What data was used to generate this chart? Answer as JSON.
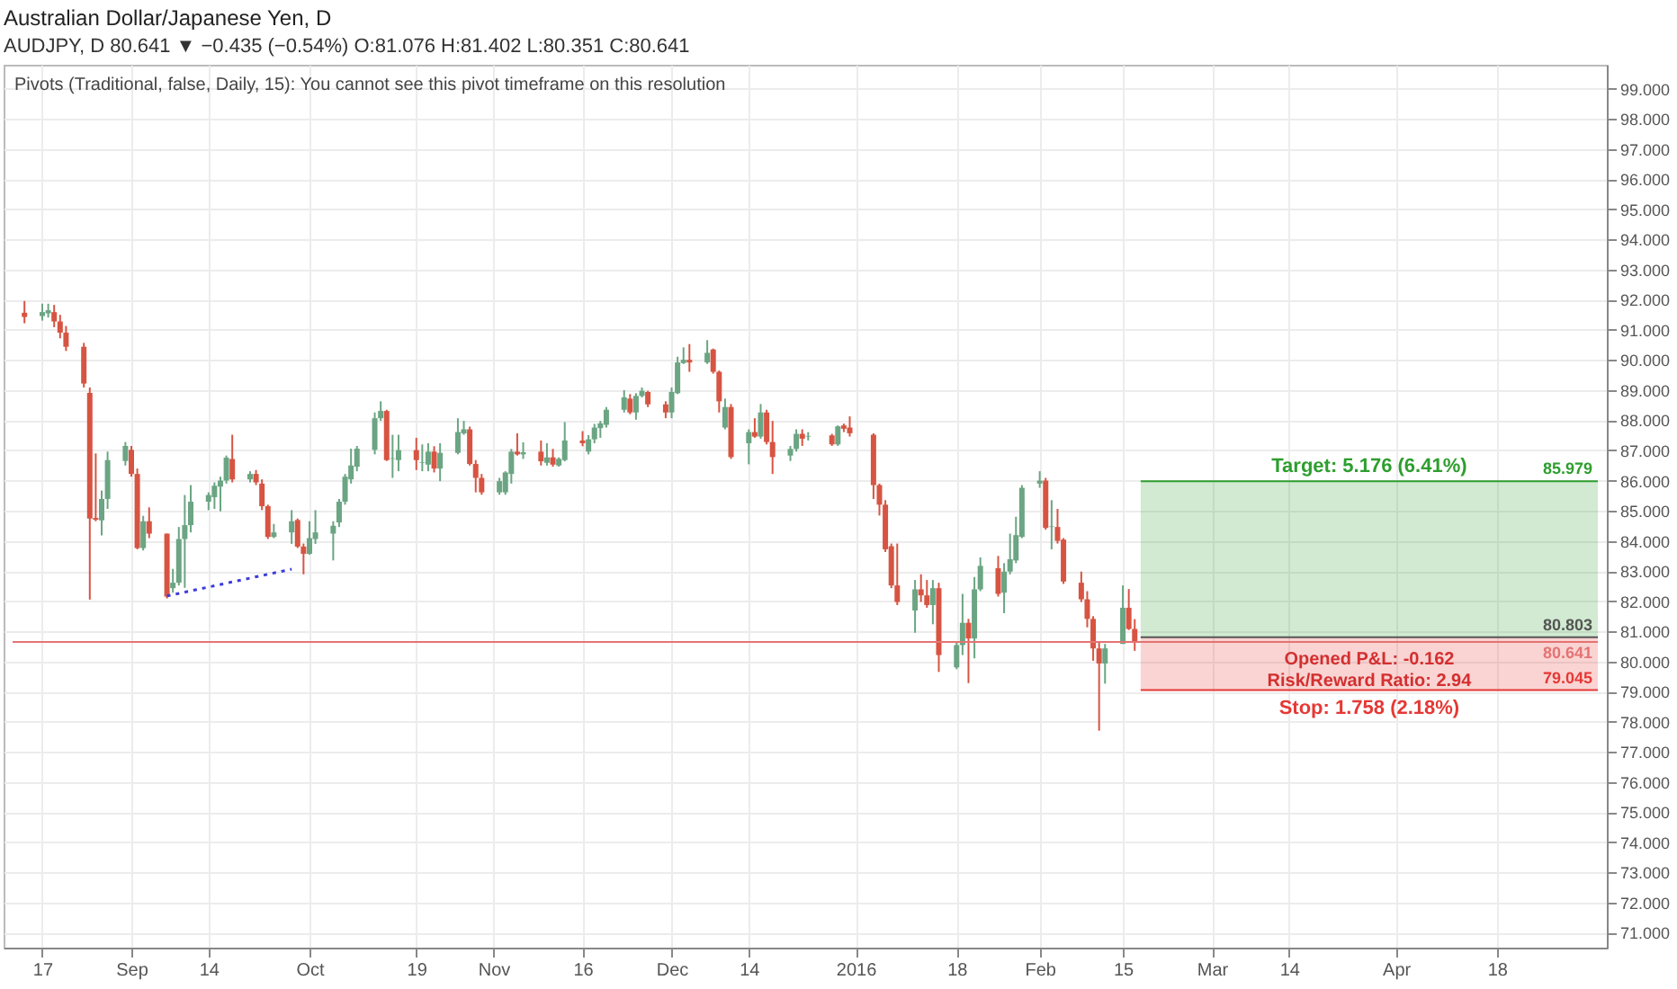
{
  "chart_data": {
    "type": "candlestick",
    "title": "Australian Dollar/Japanese Yen, D",
    "subtitle": "AUDJPY, D 80.641 ▼ −0.435 (−0.54%) O:81.076 H:81.402 L:80.351 C:80.641",
    "annotations": [
      "Pivots (Traditional, false, Daily, 15): You cannot see this pivot timeframe on this resolution",
      "Opened P&L: -0.162",
      "Risk/Reward Ratio: 2.94"
    ],
    "x": [
      "2015-08-14",
      "2015-08-17",
      "2015-08-18",
      "2015-08-19",
      "2015-08-20",
      "2015-08-21",
      "2015-08-24",
      "2015-08-25",
      "2015-08-26",
      "2015-08-27",
      "2015-08-28",
      "2015-08-31",
      "2015-09-01",
      "2015-09-02",
      "2015-09-03",
      "2015-09-04",
      "2015-09-07",
      "2015-09-08",
      "2015-09-09",
      "2015-09-10",
      "2015-09-11",
      "2015-09-14",
      "2015-09-15",
      "2015-09-16",
      "2015-09-17",
      "2015-09-18",
      "2015-09-21",
      "2015-09-22",
      "2015-09-23",
      "2015-09-24",
      "2015-09-25",
      "2015-09-28",
      "2015-09-29",
      "2015-09-30",
      "2015-10-01",
      "2015-10-02",
      "2015-10-05",
      "2015-10-06",
      "2015-10-07",
      "2015-10-08",
      "2015-10-09",
      "2015-10-12",
      "2015-10-13",
      "2015-10-14",
      "2015-10-15",
      "2015-10-16",
      "2015-10-19",
      "2015-10-20",
      "2015-10-21",
      "2015-10-22",
      "2015-10-23",
      "2015-10-26",
      "2015-10-27",
      "2015-10-28",
      "2015-10-29",
      "2015-10-30",
      "2015-11-02",
      "2015-11-03",
      "2015-11-04",
      "2015-11-05",
      "2015-11-06",
      "2015-11-09",
      "2015-11-10",
      "2015-11-11",
      "2015-11-12",
      "2015-11-13",
      "2015-11-16",
      "2015-11-17",
      "2015-11-18",
      "2015-11-19",
      "2015-11-20",
      "2015-11-23",
      "2015-11-24",
      "2015-11-25",
      "2015-11-26",
      "2015-11-27",
      "2015-11-30",
      "2015-12-01",
      "2015-12-02",
      "2015-12-03",
      "2015-12-04",
      "2015-12-07",
      "2015-12-08",
      "2015-12-09",
      "2015-12-10",
      "2015-12-11",
      "2015-12-14",
      "2015-12-15",
      "2015-12-16",
      "2015-12-17",
      "2015-12-18",
      "2015-12-21",
      "2015-12-22",
      "2015-12-23",
      "2015-12-24",
      "2015-12-28",
      "2015-12-29",
      "2015-12-30",
      "2015-12-31",
      "2016-01-04",
      "2016-01-05",
      "2016-01-06",
      "2016-01-07",
      "2016-01-08",
      "2016-01-11",
      "2016-01-12",
      "2016-01-13",
      "2016-01-14",
      "2016-01-15",
      "2016-01-18",
      "2016-01-19",
      "2016-01-20",
      "2016-01-21",
      "2016-01-22",
      "2016-01-25",
      "2016-01-26",
      "2016-01-27",
      "2016-01-28",
      "2016-01-29",
      "2016-02-01",
      "2016-02-02",
      "2016-02-03",
      "2016-02-04",
      "2016-02-05",
      "2016-02-08",
      "2016-02-09",
      "2016-02-10",
      "2016-02-11",
      "2016-02-12",
      "2016-02-15",
      "2016-02-16",
      "2016-02-17"
    ],
    "ohlc": [
      [
        91.57,
        91.96,
        91.22,
        91.43
      ],
      [
        91.46,
        91.87,
        91.31,
        91.59
      ],
      [
        91.55,
        91.87,
        91.41,
        91.65
      ],
      [
        91.59,
        91.83,
        91.09,
        91.28
      ],
      [
        91.28,
        91.5,
        90.72,
        90.91
      ],
      [
        90.91,
        91.13,
        90.3,
        90.44
      ],
      [
        90.44,
        90.57,
        89.09,
        89.22
      ],
      [
        88.91,
        89.09,
        82.05,
        84.74
      ],
      [
        84.76,
        86.9,
        84.65,
        84.7
      ],
      [
        84.68,
        85.67,
        84.18,
        85.39
      ],
      [
        85.39,
        86.96,
        85.06,
        86.68
      ],
      [
        86.65,
        87.28,
        86.5,
        87.15
      ],
      [
        87.02,
        87.15,
        86.13,
        86.22
      ],
      [
        86.22,
        86.4,
        83.72,
        83.76
      ],
      [
        83.76,
        84.83,
        83.68,
        84.65
      ],
      [
        84.65,
        85.11,
        84.09,
        84.24
      ],
      [
        84.24,
        84.24,
        82.09,
        82.15
      ],
      [
        82.43,
        83.07,
        82.28,
        82.61
      ],
      [
        82.61,
        84.46,
        82.52,
        84.06
      ],
      [
        84.06,
        85.52,
        82.44,
        84.52
      ],
      [
        84.52,
        85.85,
        84.28,
        85.3
      ],
      [
        85.3,
        85.61,
        85.02,
        85.52
      ],
      [
        85.45,
        85.94,
        85.06,
        85.83
      ],
      [
        85.8,
        86.13,
        84.98,
        86.0
      ],
      [
        86.0,
        86.83,
        85.9,
        86.76
      ],
      [
        86.72,
        87.52,
        85.94,
        86.04
      ],
      [
        86.04,
        86.31,
        85.94,
        86.22
      ],
      [
        86.22,
        86.35,
        85.85,
        85.94
      ],
      [
        85.9,
        86.04,
        85.02,
        85.15
      ],
      [
        85.15,
        85.2,
        84.06,
        84.13
      ],
      [
        84.13,
        84.56,
        84.09,
        84.28
      ],
      [
        84.28,
        85.02,
        83.9,
        84.65
      ],
      [
        84.69,
        84.74,
        83.76,
        83.81
      ],
      [
        83.81,
        83.91,
        82.89,
        83.57
      ],
      [
        83.57,
        84.65,
        83.54,
        84.09
      ],
      [
        84.06,
        85.02,
        83.9,
        84.28
      ],
      [
        84.24,
        84.65,
        83.35,
        84.5
      ],
      [
        84.61,
        85.39,
        84.46,
        85.3
      ],
      [
        85.3,
        86.22,
        85.2,
        86.13
      ],
      [
        86.04,
        87.06,
        85.9,
        86.5
      ],
      [
        86.46,
        87.15,
        86.31,
        87.06
      ],
      [
        87.02,
        88.26,
        86.87,
        88.07
      ],
      [
        88.07,
        88.63,
        87.98,
        88.31
      ],
      [
        88.31,
        88.35,
        86.65,
        86.68
      ],
      [
        86.72,
        87.52,
        86.09,
        86.74
      ],
      [
        86.68,
        87.52,
        86.31,
        87.01
      ],
      [
        87.01,
        87.42,
        86.35,
        86.68
      ],
      [
        86.59,
        87.2,
        86.31,
        86.61
      ],
      [
        86.53,
        87.24,
        86.31,
        86.96
      ],
      [
        86.96,
        87.14,
        86.27,
        86.4
      ],
      [
        86.4,
        87.24,
        85.98,
        86.92
      ],
      [
        86.92,
        88.07,
        86.87,
        87.61
      ],
      [
        87.57,
        87.98,
        87.52,
        87.7
      ],
      [
        87.7,
        87.79,
        86.5,
        86.55
      ],
      [
        86.55,
        86.68,
        85.61,
        86.09
      ],
      [
        86.09,
        86.22,
        85.53,
        85.61
      ],
      [
        85.61,
        86.09,
        85.53,
        85.98
      ],
      [
        85.61,
        86.31,
        85.53,
        86.27
      ],
      [
        86.22,
        87.05,
        85.9,
        86.96
      ],
      [
        86.96,
        87.57,
        86.83,
        86.87
      ],
      [
        86.87,
        87.27,
        86.72,
        86.94
      ],
      [
        86.96,
        87.33,
        86.5,
        86.64
      ],
      [
        86.59,
        87.24,
        86.5,
        86.77
      ],
      [
        86.77,
        87.05,
        86.46,
        86.53
      ],
      [
        86.5,
        86.77,
        86.46,
        86.72
      ],
      [
        86.68,
        87.94,
        86.64,
        87.33
      ],
      [
        87.33,
        87.64,
        87.14,
        87.24
      ],
      [
        86.96,
        87.51,
        86.87,
        87.37
      ],
      [
        87.37,
        87.88,
        87.24,
        87.76
      ],
      [
        87.74,
        87.98,
        87.42,
        87.9
      ],
      [
        87.85,
        88.44,
        87.76,
        88.35
      ],
      [
        88.35,
        89.0,
        88.26,
        88.76
      ],
      [
        88.72,
        88.87,
        88.2,
        88.26
      ],
      [
        88.26,
        88.9,
        88.02,
        88.81
      ],
      [
        88.81,
        89.09,
        88.76,
        88.98
      ],
      [
        88.94,
        88.98,
        88.44,
        88.53
      ],
      [
        88.53,
        88.63,
        88.07,
        88.26
      ],
      [
        88.26,
        89.09,
        88.07,
        88.94
      ],
      [
        88.9,
        90.11,
        88.87,
        89.92
      ],
      [
        89.9,
        90.42,
        89.87,
        90.01
      ],
      [
        90.01,
        90.53,
        89.61,
        89.92
      ],
      [
        89.92,
        90.66,
        89.87,
        90.24
      ],
      [
        90.35,
        90.38,
        89.55,
        89.61
      ],
      [
        89.61,
        89.65,
        88.26,
        88.63
      ],
      [
        87.76,
        88.72,
        87.7,
        88.44
      ],
      [
        88.44,
        88.54,
        86.72,
        86.78
      ],
      [
        87.24,
        87.7,
        86.54,
        87.61
      ],
      [
        87.61,
        88.07,
        87.42,
        87.46
      ],
      [
        87.46,
        88.54,
        87.39,
        88.26
      ],
      [
        88.26,
        88.35,
        87.2,
        87.28
      ],
      [
        87.28,
        87.98,
        86.22,
        86.78
      ],
      [
        86.83,
        87.15,
        86.65,
        87.05
      ],
      [
        87.05,
        87.7,
        86.96,
        87.55
      ],
      [
        87.55,
        87.7,
        87.15,
        87.39
      ],
      [
        87.46,
        87.61,
        87.33,
        87.48
      ],
      [
        87.5,
        87.55,
        87.15,
        87.2
      ],
      [
        87.2,
        87.83,
        87.15,
        87.8
      ],
      [
        87.83,
        87.89,
        87.61,
        87.72
      ],
      [
        87.76,
        88.13,
        87.46,
        87.57
      ],
      [
        87.52,
        87.57,
        85.39,
        85.85
      ],
      [
        85.85,
        85.9,
        84.84,
        85.2
      ],
      [
        85.2,
        85.35,
        83.63,
        83.72
      ],
      [
        83.82,
        83.91,
        82.43,
        82.52
      ],
      [
        82.52,
        83.91,
        81.87,
        81.97
      ],
      [
        81.69,
        82.7,
        80.95,
        82.39
      ],
      [
        82.39,
        82.89,
        81.97,
        82.19
      ],
      [
        82.19,
        82.7,
        81.78,
        81.87
      ],
      [
        81.87,
        82.7,
        81.23,
        82.43
      ],
      [
        82.43,
        82.61,
        79.65,
        80.21
      ],
      [
        79.8,
        80.67,
        79.74,
        80.54
      ],
      [
        80.54,
        82.24,
        80.21,
        81.28
      ],
      [
        81.28,
        81.41,
        79.28,
        80.76
      ],
      [
        80.76,
        82.8,
        80.1,
        82.39
      ],
      [
        82.39,
        83.45,
        82.33,
        83.17
      ],
      [
        83.09,
        83.5,
        82.15,
        82.24
      ],
      [
        82.28,
        83.26,
        81.6,
        82.98
      ],
      [
        82.98,
        84.24,
        82.89,
        83.39
      ],
      [
        83.35,
        84.8,
        83.26,
        84.19
      ],
      [
        84.13,
        85.85,
        84.09,
        85.76
      ],
      [
        85.9,
        86.31,
        85.76,
        86.0
      ],
      [
        86.0,
        86.09,
        84.37,
        84.43
      ],
      [
        84.46,
        85.35,
        83.72,
        84.48
      ],
      [
        84.46,
        85.06,
        83.91,
        84.0
      ],
      [
        84.04,
        84.09,
        82.57,
        82.65
      ],
      [
        82.61,
        82.98,
        81.97,
        82.06
      ],
      [
        82.06,
        82.33,
        81.13,
        81.41
      ],
      [
        81.41,
        81.5,
        80.02,
        80.43
      ],
      [
        80.43,
        80.67,
        77.7,
        79.93
      ],
      [
        79.93,
        80.58,
        79.26,
        80.43
      ],
      [
        80.58,
        82.52,
        80.58,
        81.78
      ],
      [
        81.78,
        82.4,
        81.04,
        81.076
      ],
      [
        81.076,
        81.402,
        80.351,
        80.641
      ]
    ],
    "colors": [
      "#d75442",
      "#6ba583",
      "#6ba583",
      "#d75442",
      "#d75442",
      "#d75442",
      "#d75442",
      "#d75442",
      "#d75442",
      "#6ba583",
      "#6ba583",
      "#6ba583",
      "#d75442",
      "#d75442",
      "#6ba583",
      "#d75442",
      "#d75442",
      "#6ba583",
      "#6ba583",
      "#6ba583",
      "#6ba583",
      "#6ba583",
      "#6ba583",
      "#6ba583",
      "#6ba583",
      "#d75442",
      "#6ba583",
      "#d75442",
      "#d75442",
      "#d75442",
      "#6ba583",
      "#6ba583",
      "#d75442",
      "#d75442",
      "#6ba583",
      "#6ba583",
      "#6ba583",
      "#6ba583",
      "#6ba583",
      "#6ba583",
      "#6ba583",
      "#6ba583",
      "#6ba583",
      "#d75442",
      "#6ba583",
      "#6ba583",
      "#d75442",
      "#6ba583",
      "#6ba583",
      "#d75442",
      "#6ba583",
      "#6ba583",
      "#6ba583",
      "#d75442",
      "#d75442",
      "#d75442",
      "#6ba583",
      "#6ba583",
      "#6ba583",
      "#d75442",
      "#6ba583",
      "#d75442",
      "#6ba583",
      "#d75442",
      "#6ba583",
      "#6ba583",
      "#d75442",
      "#6ba583",
      "#6ba583",
      "#6ba583",
      "#6ba583",
      "#6ba583",
      "#d75442",
      "#6ba583",
      "#6ba583",
      "#d75442",
      "#d75442",
      "#6ba583",
      "#6ba583",
      "#6ba583",
      "#d75442",
      "#6ba583",
      "#d75442",
      "#d75442",
      "#6ba583",
      "#d75442",
      "#6ba583",
      "#d75442",
      "#6ba583",
      "#d75442",
      "#d75442",
      "#6ba583",
      "#6ba583",
      "#d75442",
      "#6ba583",
      "#d75442",
      "#6ba583",
      "#d75442",
      "#d75442",
      "#d75442",
      "#d75442",
      "#d75442",
      "#d75442",
      "#d75442",
      "#6ba583",
      "#d75442",
      "#d75442",
      "#6ba583",
      "#d75442",
      "#6ba583",
      "#6ba583",
      "#d75442",
      "#6ba583",
      "#6ba583",
      "#d75442",
      "#6ba583",
      "#6ba583",
      "#6ba583",
      "#6ba583",
      "#6ba583",
      "#d75442",
      "#6ba583",
      "#d75442",
      "#d75442",
      "#d75442",
      "#d75442",
      "#d75442",
      "#d75442",
      "#6ba583",
      "#6ba583",
      "#d75442",
      "#d75442"
    ],
    "series": [
      {
        "type": "line",
        "x": [
          "2015-09-07",
          "2015-09-28"
        ],
        "values": [
          82.17,
          83.06
        ],
        "color": "#3c3cdc",
        "line_style": "dotted"
      }
    ],
    "bands": [
      {
        "axis": "y",
        "from": 80.803,
        "to": 85.979,
        "label": "Target: 5.176 (6.41%)",
        "color": "#2e9e2e"
      },
      {
        "axis": "y",
        "from": 80.803,
        "to": 79.045,
        "label": "Stop: 1.758 (2.18%)",
        "color": "#e53935"
      }
    ],
    "ref_lines": [
      {
        "axis": "y",
        "value": 85.979,
        "label": "85.979",
        "color": "#2e9e2e"
      },
      {
        "axis": "y",
        "value": 80.803,
        "label": "80.803",
        "color": "#555555"
      },
      {
        "axis": "y",
        "value": 80.641,
        "label": "80.641",
        "color": "#e57373",
        "line_style": "solid"
      },
      {
        "axis": "y",
        "value": 79.045,
        "label": "79.045",
        "color": "#e53935"
      }
    ],
    "xlim": [
      "2015-08-12",
      "2016-05-05"
    ],
    "xticks": [
      {
        "value": "2015-08-17",
        "label": "17"
      },
      {
        "value": "2015-09-01",
        "label": "Sep"
      },
      {
        "value": "2015-09-14",
        "label": "14"
      },
      {
        "value": "2015-10-01",
        "label": "Oct"
      },
      {
        "value": "2015-10-19",
        "label": "19"
      },
      {
        "value": "2015-11-01",
        "label": "Nov"
      },
      {
        "value": "2015-11-16",
        "label": "16"
      },
      {
        "value": "2015-12-01",
        "label": "Dec"
      },
      {
        "value": "2015-12-14",
        "label": "14"
      },
      {
        "value": "2016-01-01",
        "label": "2016"
      },
      {
        "value": "2016-01-18",
        "label": "18"
      },
      {
        "value": "2016-02-01",
        "label": "Feb"
      },
      {
        "value": "2016-02-15",
        "label": "15"
      },
      {
        "value": "2016-03-01",
        "label": "Mar"
      },
      {
        "value": "2016-03-14",
        "label": "14"
      },
      {
        "value": "2016-04-01",
        "label": "Apr"
      },
      {
        "value": "2016-04-18",
        "label": "18"
      }
    ],
    "ylim": [
      70.5,
      99.8
    ],
    "yticks": [
      {
        "value": 71,
        "label": "71.000"
      },
      {
        "value": 72,
        "label": "72.000"
      },
      {
        "value": 73,
        "label": "73.000"
      },
      {
        "value": 74,
        "label": "74.000"
      },
      {
        "value": 75,
        "label": "75.000"
      },
      {
        "value": 76,
        "label": "76.000"
      },
      {
        "value": 77,
        "label": "77.000"
      },
      {
        "value": 78,
        "label": "78.000"
      },
      {
        "value": 79,
        "label": "79.000"
      },
      {
        "value": 80,
        "label": "80.000"
      },
      {
        "value": 81,
        "label": "81.000"
      },
      {
        "value": 82,
        "label": "82.000"
      },
      {
        "value": 83,
        "label": "83.000"
      },
      {
        "value": 84,
        "label": "84.000"
      },
      {
        "value": 85,
        "label": "85.000"
      },
      {
        "value": 86,
        "label": "86.000"
      },
      {
        "value": 87,
        "label": "87.000"
      },
      {
        "value": 88,
        "label": "88.000"
      },
      {
        "value": 89,
        "label": "89.000"
      },
      {
        "value": 90,
        "label": "90.000"
      },
      {
        "value": 91,
        "label": "91.000"
      },
      {
        "value": 92,
        "label": "92.000"
      },
      {
        "value": 93,
        "label": "93.000"
      },
      {
        "value": 94,
        "label": "94.000"
      },
      {
        "value": 95,
        "label": "95.000"
      },
      {
        "value": 96,
        "label": "96.000"
      },
      {
        "value": 97,
        "label": "97.000"
      },
      {
        "value": 98,
        "label": "98.000"
      },
      {
        "value": 99,
        "label": "99.000"
      }
    ],
    "grid": true
  }
}
